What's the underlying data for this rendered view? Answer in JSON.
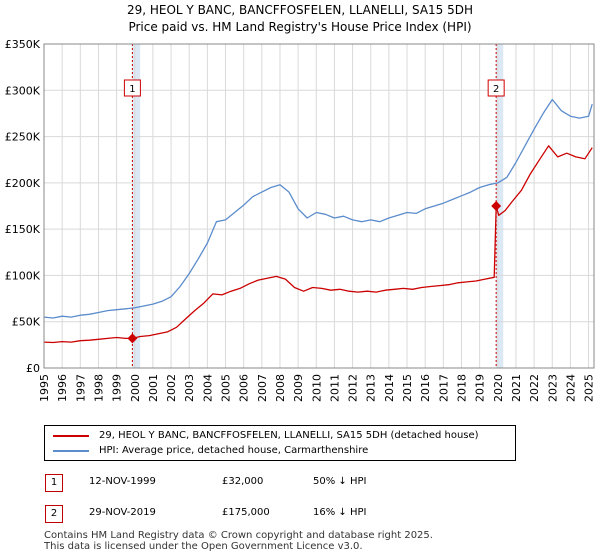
{
  "header": {
    "title": "29, HEOL Y BANC, BANCFFOSFELEN, LLANELLI, SA15 5DH",
    "subtitle": "Price paid vs. HM Land Registry's House Price Index (HPI)"
  },
  "colors": {
    "property": "#cc0000",
    "hpi": "#5b8ccc",
    "highlight": "#dde8f5",
    "sale_line": "#cc0000",
    "grid": "#d9d9d9"
  },
  "legend": {
    "property_label": "29, HEOL Y BANC, BANCFFOSFELEN, LLANELLI, SA15 5DH (detached house)",
    "hpi_label": "HPI: Average price, detached house, Carmarthenshire"
  },
  "transactions": [
    {
      "marker": "1",
      "date": "12-NOV-1999",
      "price": "£32,000",
      "hpi_diff": "50% ↓ HPI"
    },
    {
      "marker": "2",
      "date": "29-NOV-2019",
      "price": "£175,000",
      "hpi_diff": "16% ↓ HPI"
    }
  ],
  "footer": {
    "line1": "Contains HM Land Registry data © Crown copyright and database right 2025.",
    "line2": "This data is licensed under the Open Government Licence v3.0."
  },
  "chart_data": {
    "type": "line",
    "title": "29, HEOL Y BANC, BANCFFOSFELEN, LLANELLI, SA15 5DH",
    "subtitle": "Price paid vs. HM Land Registry's House Price Index (HPI)",
    "xlabel": "",
    "ylabel": "",
    "xlim": [
      1995,
      2025.3
    ],
    "ylim": [
      0,
      350000
    ],
    "yticks": [
      0,
      50000,
      100000,
      150000,
      200000,
      250000,
      300000,
      350000
    ],
    "ytick_labels": [
      "£0",
      "£50K",
      "£100K",
      "£150K",
      "£200K",
      "£250K",
      "£300K",
      "£350K"
    ],
    "xticks": [
      1995,
      1996,
      1997,
      1998,
      1999,
      2000,
      2001,
      2002,
      2003,
      2004,
      2005,
      2006,
      2007,
      2008,
      2009,
      2010,
      2011,
      2012,
      2013,
      2014,
      2015,
      2016,
      2017,
      2018,
      2019,
      2020,
      2021,
      2022,
      2023,
      2024,
      2025
    ],
    "grid": true,
    "highlight_ranges": [
      [
        1999.87,
        2000.3
      ],
      [
        2019.91,
        2020.3
      ]
    ],
    "sale_markers": [
      {
        "label": "1",
        "x": 1999.87,
        "y": 32000
      },
      {
        "label": "2",
        "x": 2019.91,
        "y": 175000
      }
    ],
    "series": [
      {
        "name": "29, HEOL Y BANC, BANCFFOSFELEN, LLANELLI, SA15 5DH (detached house)",
        "x": [
          1995.0,
          1995.5,
          1996.0,
          1996.5,
          1997.0,
          1997.5,
          1998.0,
          1998.5,
          1999.0,
          1999.5,
          1999.87,
          2000.3,
          2000.8,
          2001.3,
          2001.8,
          2002.3,
          2002.8,
          2003.3,
          2003.8,
          2004.3,
          2004.8,
          2005.3,
          2005.8,
          2006.3,
          2006.8,
          2007.3,
          2007.8,
          2008.3,
          2008.8,
          2009.3,
          2009.8,
          2010.3,
          2010.8,
          2011.3,
          2011.8,
          2012.3,
          2012.8,
          2013.3,
          2013.8,
          2014.3,
          2014.8,
          2015.3,
          2015.8,
          2016.3,
          2016.8,
          2017.3,
          2017.8,
          2018.3,
          2018.8,
          2019.3,
          2019.8,
          2019.91,
          2020.05,
          2020.4,
          2020.8,
          2021.3,
          2021.8,
          2022.3,
          2022.8,
          2023.3,
          2023.8,
          2024.3,
          2024.8,
          2025.2
        ],
        "y": [
          28000,
          27500,
          28500,
          28000,
          29500,
          30000,
          31000,
          32000,
          33000,
          32000,
          32000,
          34000,
          35000,
          37000,
          39000,
          44000,
          53000,
          62000,
          70000,
          80000,
          79000,
          83000,
          86000,
          91000,
          95000,
          97000,
          99000,
          96000,
          87000,
          83000,
          87000,
          86000,
          84000,
          85000,
          83000,
          82000,
          83000,
          82000,
          84000,
          85000,
          86000,
          85000,
          87000,
          88000,
          89000,
          90000,
          92000,
          93000,
          94000,
          96000,
          98000,
          175000,
          165000,
          170000,
          180000,
          192000,
          210000,
          225000,
          240000,
          228000,
          232000,
          228000,
          226000,
          238000
        ]
      },
      {
        "name": "HPI: Average price, detached house, Carmarthenshire",
        "x": [
          1995.0,
          1995.5,
          1996.0,
          1996.5,
          1997.0,
          1997.5,
          1998.0,
          1998.5,
          1999.0,
          1999.5,
          2000.0,
          2000.5,
          2001.0,
          2001.5,
          2002.0,
          2002.5,
          2003.0,
          2003.5,
          2004.0,
          2004.5,
          2005.0,
          2005.5,
          2006.0,
          2006.5,
          2007.0,
          2007.5,
          2008.0,
          2008.5,
          2009.0,
          2009.5,
          2010.0,
          2010.5,
          2011.0,
          2011.5,
          2012.0,
          2012.5,
          2013.0,
          2013.5,
          2014.0,
          2014.5,
          2015.0,
          2015.5,
          2016.0,
          2016.5,
          2017.0,
          2017.5,
          2018.0,
          2018.5,
          2019.0,
          2019.5,
          2020.0,
          2020.5,
          2021.0,
          2021.5,
          2022.0,
          2022.5,
          2023.0,
          2023.5,
          2024.0,
          2024.5,
          2025.0,
          2025.2
        ],
        "y": [
          55000,
          54000,
          56000,
          55000,
          57000,
          58000,
          60000,
          62000,
          63000,
          64000,
          65000,
          67000,
          69000,
          72000,
          77000,
          88000,
          102000,
          118000,
          135000,
          158000,
          160000,
          168000,
          176000,
          185000,
          190000,
          195000,
          198000,
          190000,
          172000,
          162000,
          168000,
          166000,
          162000,
          164000,
          160000,
          158000,
          160000,
          158000,
          162000,
          165000,
          168000,
          167000,
          172000,
          175000,
          178000,
          182000,
          186000,
          190000,
          195000,
          198000,
          200000,
          206000,
          222000,
          240000,
          258000,
          275000,
          290000,
          278000,
          272000,
          270000,
          272000,
          285000
        ]
      }
    ]
  }
}
